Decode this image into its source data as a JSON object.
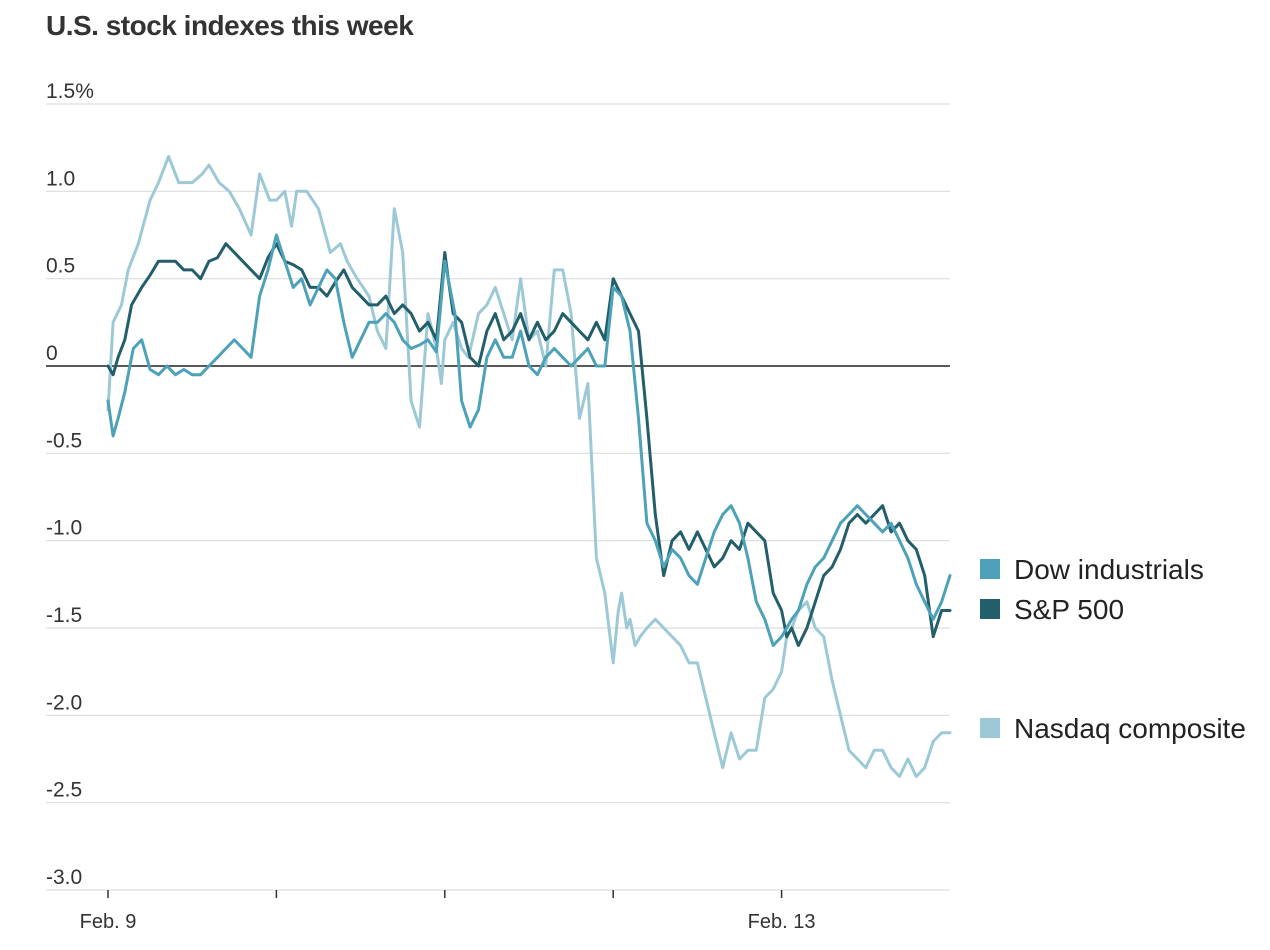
{
  "chart_data": {
    "type": "line",
    "title": "U.S. stock indexes this week",
    "xlabel": "",
    "ylabel": "",
    "ylim": [
      -3.0,
      1.5
    ],
    "xlim": [
      0,
      5
    ],
    "grid": true,
    "legend_position": "right",
    "y_ticks": [
      {
        "value": 1.5,
        "label": "1.5%"
      },
      {
        "value": 1.0,
        "label": "1.0"
      },
      {
        "value": 0.5,
        "label": "0.5"
      },
      {
        "value": 0,
        "label": "0"
      },
      {
        "value": -0.5,
        "label": "-0.5"
      },
      {
        "value": -1.0,
        "label": "-1.0"
      },
      {
        "value": -1.5,
        "label": "-1.5"
      },
      {
        "value": -2.0,
        "label": "-2.0"
      },
      {
        "value": -2.5,
        "label": "-2.5"
      },
      {
        "value": -3.0,
        "label": "-3.0"
      }
    ],
    "x_ticks": [
      0,
      1,
      2,
      3,
      4
    ],
    "x_tick_labels": [
      {
        "value": 0,
        "label": "Feb. 9"
      },
      {
        "value": 4,
        "label": "Feb. 13"
      }
    ],
    "series": [
      {
        "name": "Nasdaq composite",
        "color": "#9dc9d6",
        "x": [
          0,
          0.03,
          0.08,
          0.12,
          0.18,
          0.25,
          0.3,
          0.36,
          0.42,
          0.5,
          0.56,
          0.6,
          0.66,
          0.72,
          0.78,
          0.85,
          0.9,
          0.96,
          1.0,
          1.05,
          1.09,
          1.12,
          1.18,
          1.25,
          1.32,
          1.38,
          1.42,
          1.48,
          1.55,
          1.6,
          1.65,
          1.7,
          1.75,
          1.8,
          1.85,
          1.9,
          1.95,
          1.98,
          2.0,
          2.05,
          2.1,
          2.14,
          2.2,
          2.25,
          2.3,
          2.35,
          2.4,
          2.45,
          2.5,
          2.55,
          2.6,
          2.65,
          2.7,
          2.75,
          2.8,
          2.85,
          2.9,
          2.95,
          3.0,
          3.03,
          3.05,
          3.08,
          3.1,
          3.13,
          3.16,
          3.2,
          3.25,
          3.3,
          3.35,
          3.4,
          3.45,
          3.5,
          3.55,
          3.6,
          3.65,
          3.7,
          3.75,
          3.8,
          3.85,
          3.9,
          3.95,
          4.0,
          4.03,
          4.06,
          4.1,
          4.15,
          4.2,
          4.25,
          4.3,
          4.35,
          4.4,
          4.45,
          4.5,
          4.55,
          4.6,
          4.65,
          4.7,
          4.75,
          4.8,
          4.85,
          4.9,
          4.95,
          5.0
        ],
        "values": [
          -0.25,
          0.25,
          0.35,
          0.55,
          0.7,
          0.95,
          1.05,
          1.2,
          1.05,
          1.05,
          1.1,
          1.15,
          1.05,
          1.0,
          0.9,
          0.75,
          1.1,
          0.95,
          0.95,
          1.0,
          0.8,
          1.0,
          1.0,
          0.9,
          0.65,
          0.7,
          0.6,
          0.5,
          0.4,
          0.2,
          0.1,
          0.9,
          0.65,
          -0.2,
          -0.35,
          0.3,
          0.1,
          -0.1,
          0.15,
          0.25,
          0.1,
          0.05,
          0.3,
          0.35,
          0.45,
          0.3,
          0.15,
          0.5,
          0.15,
          0.2,
          0.0,
          0.55,
          0.55,
          0.3,
          -0.3,
          -0.1,
          -1.1,
          -1.3,
          -1.7,
          -1.4,
          -1.3,
          -1.5,
          -1.45,
          -1.6,
          -1.55,
          -1.5,
          -1.45,
          -1.5,
          -1.55,
          -1.6,
          -1.7,
          -1.7,
          -1.9,
          -2.1,
          -2.3,
          -2.1,
          -2.25,
          -2.2,
          -2.2,
          -1.9,
          -1.85,
          -1.75,
          -1.55,
          -1.5,
          -1.4,
          -1.35,
          -1.5,
          -1.55,
          -1.8,
          -2.0,
          -2.2,
          -2.25,
          -2.3,
          -2.2,
          -2.2,
          -2.3,
          -2.35,
          -2.25,
          -2.35,
          -2.3,
          -2.15,
          -2.1,
          -2.1
        ]
      },
      {
        "name": "S&P 500",
        "color": "#235f6a",
        "x": [
          0,
          0.03,
          0.06,
          0.1,
          0.14,
          0.2,
          0.25,
          0.3,
          0.35,
          0.4,
          0.45,
          0.5,
          0.55,
          0.6,
          0.65,
          0.7,
          0.75,
          0.8,
          0.85,
          0.9,
          0.95,
          1.0,
          1.05,
          1.1,
          1.15,
          1.2,
          1.25,
          1.3,
          1.35,
          1.4,
          1.45,
          1.5,
          1.55,
          1.6,
          1.65,
          1.7,
          1.75,
          1.8,
          1.85,
          1.9,
          1.95,
          2.0,
          2.02,
          2.05,
          2.1,
          2.15,
          2.2,
          2.25,
          2.3,
          2.35,
          2.4,
          2.45,
          2.5,
          2.55,
          2.6,
          2.65,
          2.7,
          2.75,
          2.8,
          2.85,
          2.9,
          2.95,
          3.0,
          3.05,
          3.1,
          3.15,
          3.2,
          3.25,
          3.3,
          3.35,
          3.4,
          3.45,
          3.5,
          3.55,
          3.6,
          3.65,
          3.7,
          3.75,
          3.8,
          3.85,
          3.9,
          3.95,
          4.0,
          4.03,
          4.06,
          4.1,
          4.15,
          4.2,
          4.25,
          4.3,
          4.35,
          4.4,
          4.45,
          4.5,
          4.55,
          4.6,
          4.65,
          4.7,
          4.75,
          4.8,
          4.85,
          4.9,
          4.95,
          5.0
        ],
        "values": [
          0.0,
          -0.05,
          0.05,
          0.15,
          0.35,
          0.45,
          0.52,
          0.6,
          0.6,
          0.6,
          0.55,
          0.55,
          0.5,
          0.6,
          0.62,
          0.7,
          0.65,
          0.6,
          0.55,
          0.5,
          0.62,
          0.7,
          0.6,
          0.58,
          0.55,
          0.45,
          0.45,
          0.4,
          0.48,
          0.55,
          0.45,
          0.4,
          0.35,
          0.35,
          0.4,
          0.3,
          0.35,
          0.3,
          0.2,
          0.25,
          0.15,
          0.65,
          0.5,
          0.3,
          0.25,
          0.05,
          0.0,
          0.2,
          0.3,
          0.15,
          0.2,
          0.3,
          0.15,
          0.25,
          0.15,
          0.2,
          0.3,
          0.25,
          0.2,
          0.15,
          0.25,
          0.15,
          0.5,
          0.4,
          0.3,
          0.2,
          -0.3,
          -0.85,
          -1.2,
          -1.0,
          -0.95,
          -1.05,
          -0.95,
          -1.05,
          -1.15,
          -1.1,
          -1.0,
          -1.05,
          -0.9,
          -0.95,
          -1.0,
          -1.3,
          -1.4,
          -1.55,
          -1.5,
          -1.6,
          -1.5,
          -1.35,
          -1.2,
          -1.15,
          -1.05,
          -0.9,
          -0.85,
          -0.9,
          -0.85,
          -0.8,
          -0.95,
          -0.9,
          -1.0,
          -1.05,
          -1.2,
          -1.55,
          -1.4,
          -1.4
        ]
      },
      {
        "name": "Dow industrials",
        "color": "#4da1b8",
        "x": [
          0,
          0.03,
          0.06,
          0.1,
          0.15,
          0.2,
          0.25,
          0.3,
          0.35,
          0.4,
          0.45,
          0.5,
          0.55,
          0.6,
          0.65,
          0.7,
          0.75,
          0.8,
          0.85,
          0.9,
          0.95,
          1.0,
          1.05,
          1.1,
          1.15,
          1.2,
          1.25,
          1.3,
          1.35,
          1.4,
          1.45,
          1.5,
          1.55,
          1.6,
          1.65,
          1.7,
          1.75,
          1.8,
          1.85,
          1.9,
          1.95,
          2.0,
          2.03,
          2.06,
          2.1,
          2.15,
          2.2,
          2.25,
          2.3,
          2.35,
          2.4,
          2.45,
          2.5,
          2.55,
          2.6,
          2.65,
          2.7,
          2.75,
          2.8,
          2.85,
          2.9,
          2.95,
          3.0,
          3.05,
          3.1,
          3.15,
          3.2,
          3.25,
          3.3,
          3.35,
          3.4,
          3.45,
          3.5,
          3.55,
          3.6,
          3.65,
          3.7,
          3.75,
          3.8,
          3.85,
          3.9,
          3.95,
          4.0,
          4.03,
          4.06,
          4.1,
          4.15,
          4.2,
          4.25,
          4.3,
          4.35,
          4.4,
          4.45,
          4.5,
          4.55,
          4.6,
          4.65,
          4.7,
          4.75,
          4.8,
          4.85,
          4.9,
          4.95,
          5.0
        ],
        "values": [
          -0.2,
          -0.4,
          -0.3,
          -0.15,
          0.1,
          0.15,
          -0.02,
          -0.05,
          0.0,
          -0.05,
          -0.02,
          -0.05,
          -0.05,
          0.0,
          0.05,
          0.1,
          0.15,
          0.1,
          0.05,
          0.4,
          0.55,
          0.75,
          0.6,
          0.45,
          0.5,
          0.35,
          0.45,
          0.55,
          0.5,
          0.25,
          0.05,
          0.15,
          0.25,
          0.25,
          0.3,
          0.25,
          0.15,
          0.1,
          0.12,
          0.15,
          0.08,
          0.6,
          0.45,
          0.3,
          -0.2,
          -0.35,
          -0.25,
          0.05,
          0.15,
          0.05,
          0.05,
          0.2,
          0.0,
          -0.05,
          0.05,
          0.1,
          0.05,
          0.0,
          0.05,
          0.1,
          0.0,
          0.0,
          0.45,
          0.4,
          0.2,
          -0.3,
          -0.9,
          -1.0,
          -1.15,
          -1.05,
          -1.1,
          -1.2,
          -1.25,
          -1.1,
          -0.95,
          -0.85,
          -0.8,
          -0.9,
          -1.1,
          -1.35,
          -1.45,
          -1.6,
          -1.55,
          -1.5,
          -1.45,
          -1.4,
          -1.25,
          -1.15,
          -1.1,
          -1.0,
          -0.9,
          -0.85,
          -0.8,
          -0.85,
          -0.9,
          -0.95,
          -0.9,
          -1.0,
          -1.1,
          -1.25,
          -1.35,
          -1.45,
          -1.35,
          -1.2
        ]
      }
    ],
    "legend": [
      {
        "label": "Dow industrials",
        "color": "#4da1b8"
      },
      {
        "label": "S&P 500",
        "color": "#235f6a"
      },
      {
        "label": "Nasdaq composite",
        "color": "#9dc9d6"
      }
    ]
  }
}
